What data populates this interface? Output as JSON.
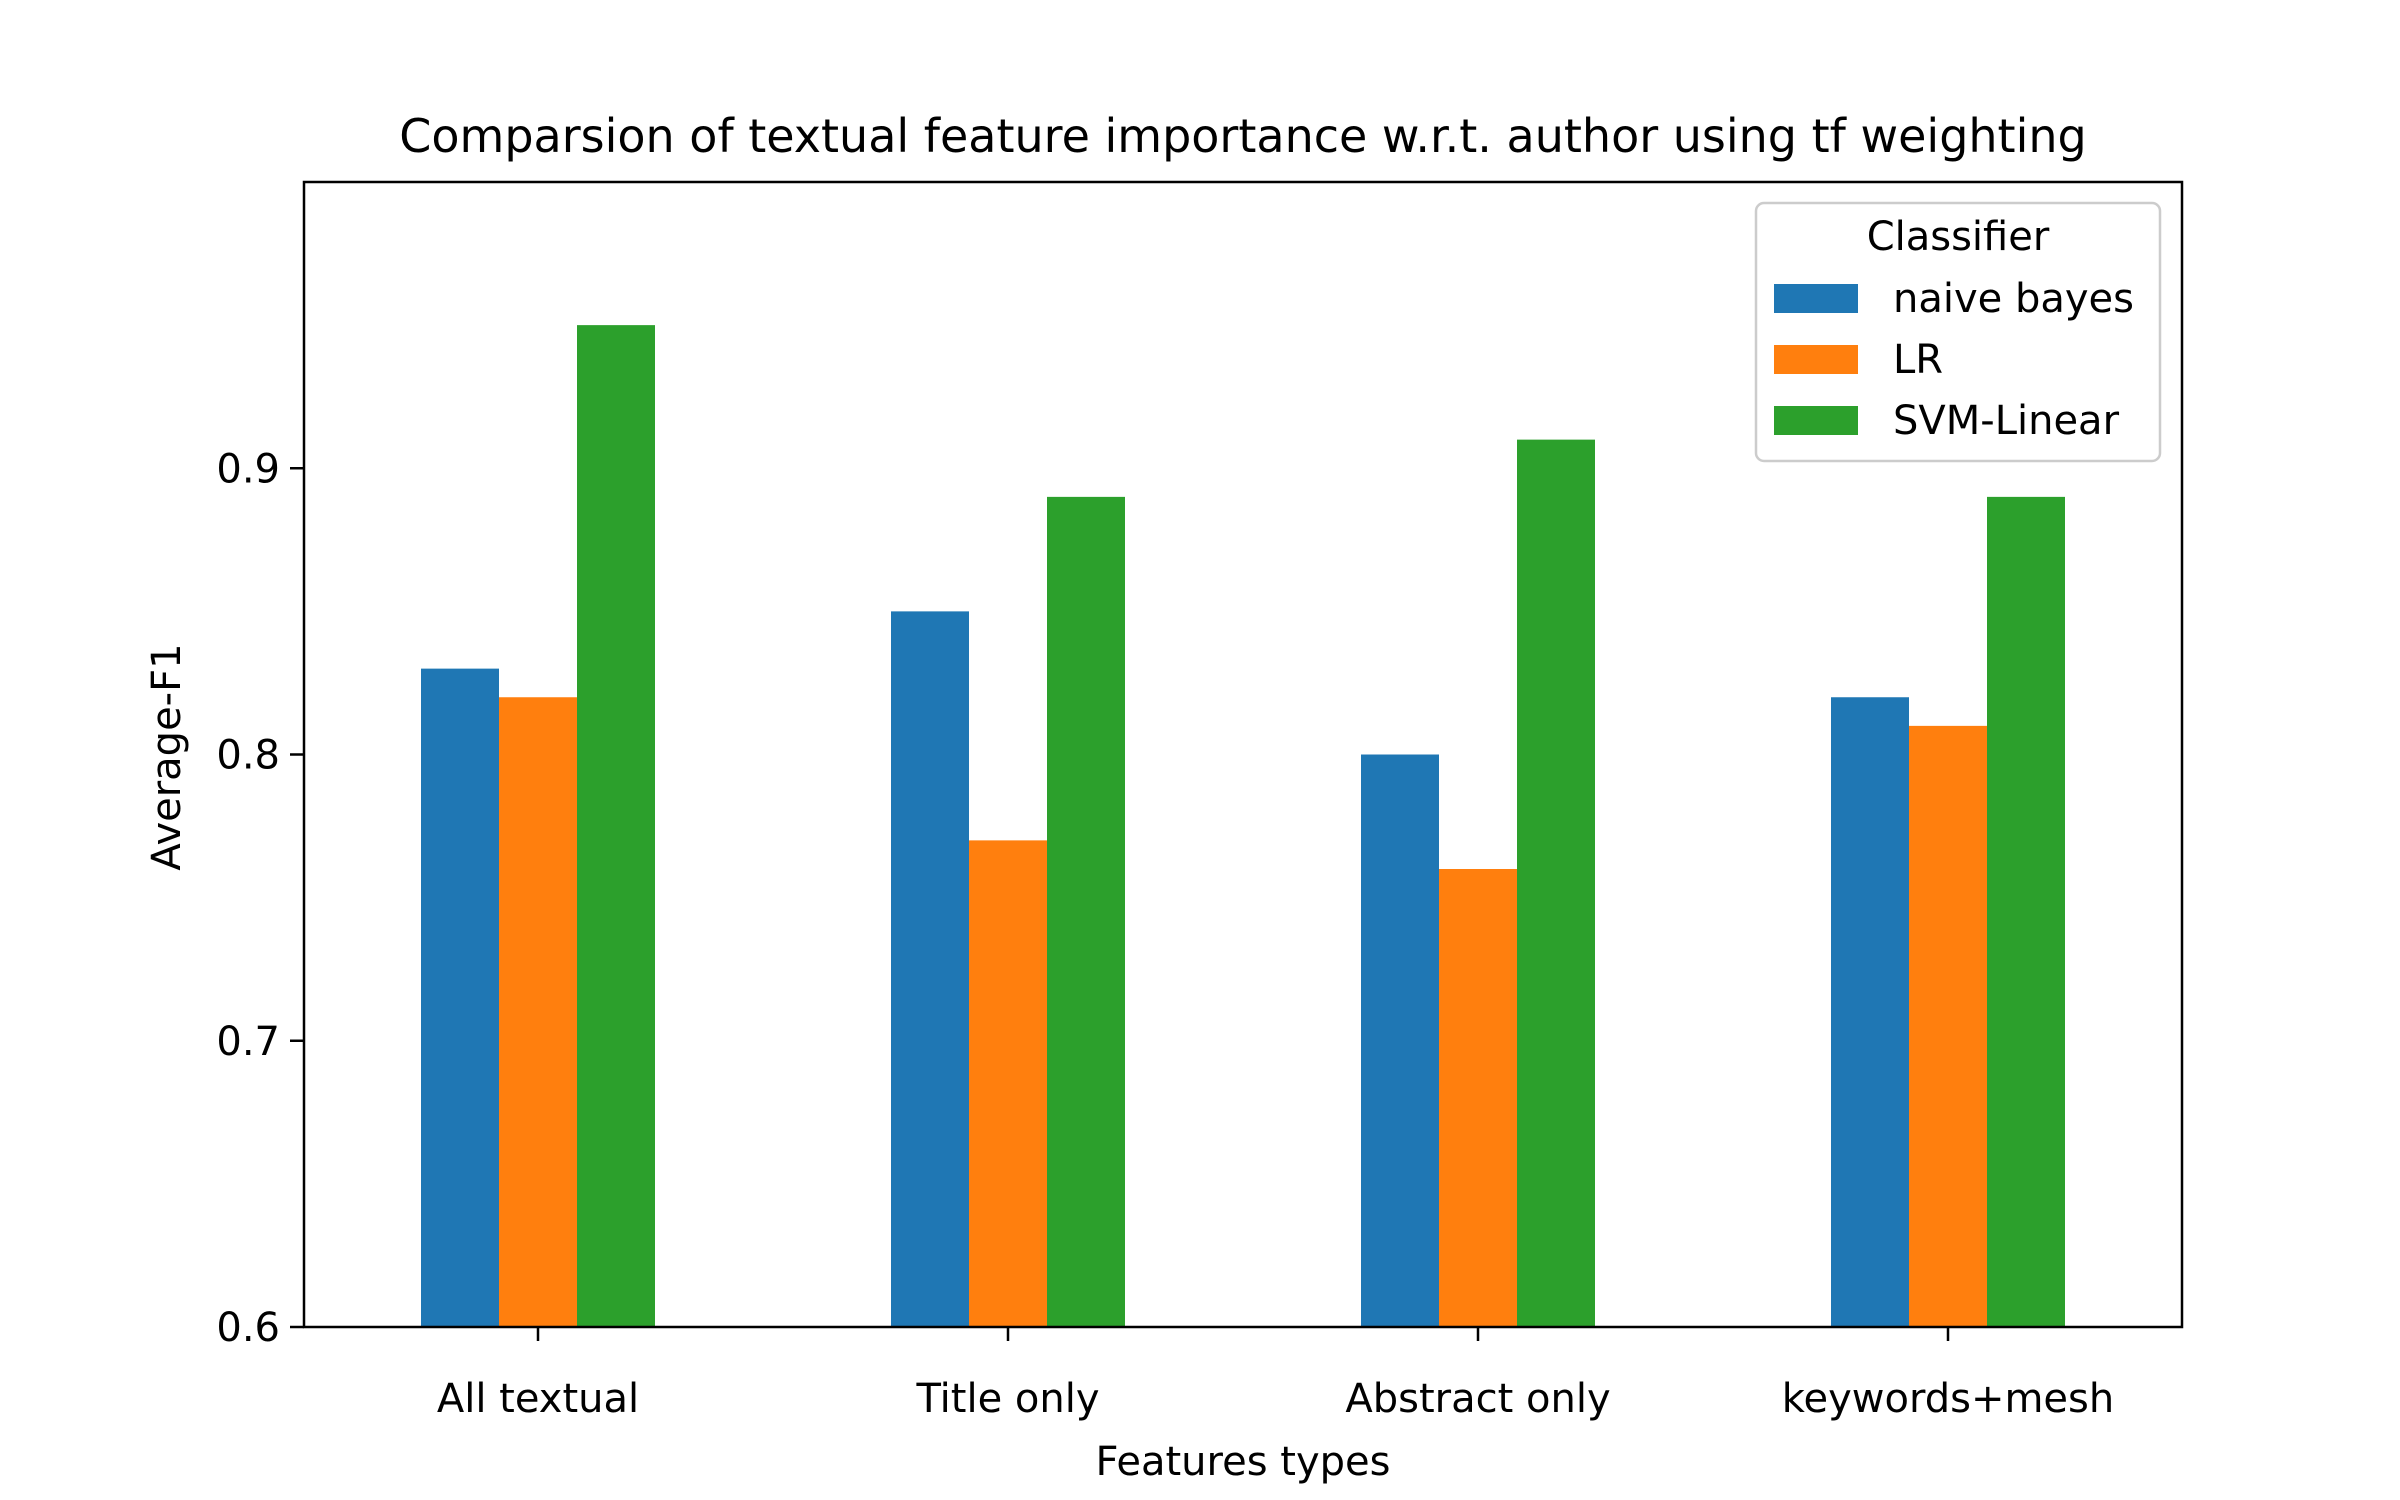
{
  "chart_data": {
    "type": "bar",
    "title": "Comparsion of textual feature importance w.r.t. author using tf weighting",
    "xlabel": "Features types",
    "ylabel": "Average-F1",
    "categories": [
      "All textual",
      "Title only",
      "Abstract only",
      "keywords+mesh"
    ],
    "series": [
      {
        "name": "naive bayes",
        "values": [
          0.83,
          0.85,
          0.8,
          0.82
        ],
        "color": "#1f77b4"
      },
      {
        "name": "LR",
        "values": [
          0.82,
          0.77,
          0.76,
          0.81
        ],
        "color": "#ff7f0e"
      },
      {
        "name": "SVM-Linear",
        "values": [
          0.95,
          0.89,
          0.91,
          0.89
        ],
        "color": "#2ca02c"
      }
    ],
    "ylim": [
      0.6,
      1.0
    ],
    "yticks": [
      "0.6",
      "0.7",
      "0.8",
      "0.9"
    ],
    "grid": false,
    "legend": {
      "title": "Classifier",
      "placement": "top-right"
    }
  }
}
